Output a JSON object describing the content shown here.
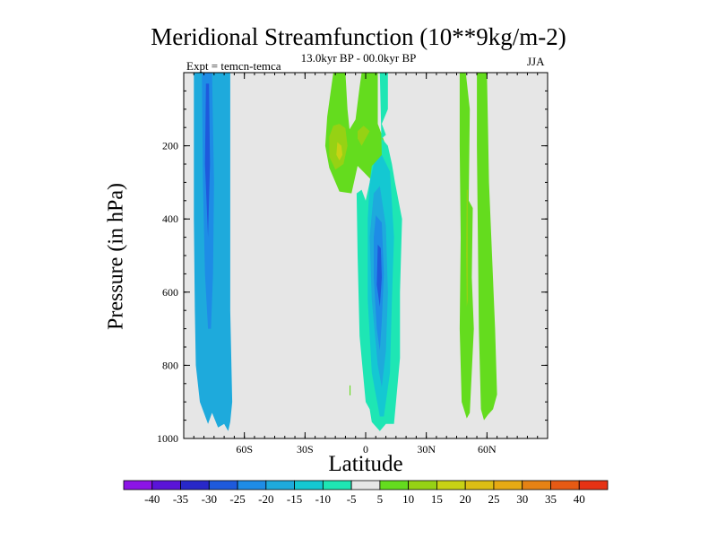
{
  "chart_data": {
    "type": "contour",
    "title": "Meridional Streamfunction (10**9kg/m-2)",
    "subtitle": "13.0kyr BP - 00.0kyr BP",
    "experiment_label": "Expt = temcn-temca",
    "season": "JJA",
    "xlabel": "Latitude",
    "ylabel": "Pressure (in hPa)",
    "xlim": [
      -90,
      90
    ],
    "ylim": [
      1000,
      0
    ],
    "x_ticks": [
      {
        "value": -60,
        "label": "60S"
      },
      {
        "value": -30,
        "label": "30S"
      },
      {
        "value": 0,
        "label": "0"
      },
      {
        "value": 30,
        "label": "30N"
      },
      {
        "value": 60,
        "label": "60N"
      }
    ],
    "y_ticks": [
      {
        "value": 200,
        "label": "200"
      },
      {
        "value": 400,
        "label": "400"
      },
      {
        "value": 600,
        "label": "600"
      },
      {
        "value": 800,
        "label": "800"
      },
      {
        "value": 1000,
        "label": "1000"
      }
    ],
    "background_color": "#e6e6e6",
    "contour_levels": [
      {
        "label": "-40",
        "color": "#8c14e6"
      },
      {
        "label": "-35",
        "color": "#5a14d8"
      },
      {
        "label": "-30",
        "color": "#2828c8"
      },
      {
        "label": "-25",
        "color": "#1e5adc"
      },
      {
        "label": "-20",
        "color": "#1e8ce6"
      },
      {
        "label": "-15",
        "color": "#1eaadc"
      },
      {
        "label": "-10",
        "color": "#14c8d2"
      },
      {
        "label": "-5",
        "color": "#1ee6b4"
      },
      {
        "label": "5",
        "color": "#e6e6e6"
      },
      {
        "label": "10",
        "color": "#64dc1e"
      },
      {
        "label": "15",
        "color": "#96d214"
      },
      {
        "label": "20",
        "color": "#c8d214"
      },
      {
        "label": "25",
        "color": "#dcbe14"
      },
      {
        "label": "30",
        "color": "#e6aa14"
      },
      {
        "label": "35",
        "color": "#e68214"
      },
      {
        "label": "40",
        "color": "#e65a14"
      },
      {
        "color": "#e63214"
      }
    ],
    "regions": [
      {
        "name": "sh-high-lat-negative-cell",
        "level_color": "#1eaadc",
        "points": [
          [
            -85,
            0
          ],
          [
            -67,
            0
          ],
          [
            -67,
            650
          ],
          [
            -66,
            900
          ],
          [
            -67,
            955
          ],
          [
            -68,
            980
          ],
          [
            -70,
            960
          ],
          [
            -73,
            970
          ],
          [
            -76,
            930
          ],
          [
            -78,
            960
          ],
          [
            -82,
            900
          ],
          [
            -84,
            800
          ],
          [
            -84.5,
            650
          ],
          [
            -85,
            400
          ]
        ]
      },
      {
        "name": "sh-high-lat-core-minus15",
        "level_color": "#1e8ce6",
        "points": [
          [
            -81,
            0
          ],
          [
            -76,
            0
          ],
          [
            -75,
            300
          ],
          [
            -75.5,
            550
          ],
          [
            -76.5,
            700
          ],
          [
            -78,
            700
          ],
          [
            -79.5,
            550
          ],
          [
            -80.5,
            300
          ]
        ]
      },
      {
        "name": "sh-high-lat-core-minus20",
        "level_color": "#1e5adc",
        "points": [
          [
            -79,
            30
          ],
          [
            -77.5,
            30
          ],
          [
            -77,
            250
          ],
          [
            -78,
            450
          ],
          [
            -79.5,
            250
          ]
        ]
      },
      {
        "name": "upper-trop-positive-patch",
        "level_color": "#64dc1e",
        "points": [
          [
            -16,
            0
          ],
          [
            -10,
            0
          ],
          [
            -9,
            100
          ],
          [
            -8,
            155
          ],
          [
            -5,
            128
          ],
          [
            -3,
            40
          ],
          [
            -2,
            0
          ],
          [
            6,
            0
          ],
          [
            6,
            140
          ],
          [
            10,
            200
          ],
          [
            9,
            235
          ],
          [
            5,
            248
          ],
          [
            4,
            300
          ],
          [
            -4,
            255
          ],
          [
            -7,
            330
          ],
          [
            -13,
            325
          ],
          [
            -18,
            260
          ],
          [
            -20,
            200
          ],
          [
            -19,
            120
          ]
        ]
      },
      {
        "name": "upper-trop-patch-15a",
        "level_color": "#96d214",
        "points": [
          [
            -16,
            145
          ],
          [
            -13,
            140
          ],
          [
            -10,
            152
          ],
          [
            -9,
            200
          ],
          [
            -11,
            250
          ],
          [
            -15,
            265
          ],
          [
            -18,
            230
          ],
          [
            -18,
            175
          ]
        ]
      },
      {
        "name": "upper-trop-patch-20",
        "level_color": "#c8d214",
        "points": [
          [
            -14,
            190
          ],
          [
            -12,
            200
          ],
          [
            -11.5,
            225
          ],
          [
            -13,
            240
          ],
          [
            -14.5,
            225
          ]
        ]
      },
      {
        "name": "upper-trop-patch-15b",
        "level_color": "#96d214",
        "points": [
          [
            -4,
            160
          ],
          [
            -1,
            145
          ],
          [
            2,
            160
          ],
          [
            0,
            180
          ],
          [
            -2,
            200
          ],
          [
            -4,
            180
          ]
        ]
      },
      {
        "name": "tropical-negative-cell",
        "level_color": "#1ee6b4",
        "points": [
          [
            7,
            0
          ],
          [
            11,
            0
          ],
          [
            11,
            100
          ],
          [
            8,
            140
          ],
          [
            10,
            170
          ],
          [
            8,
            180
          ],
          [
            11,
            200
          ],
          [
            13,
            250
          ],
          [
            14.5,
            300
          ],
          [
            18,
            400
          ],
          [
            17,
            600
          ],
          [
            17,
            780
          ],
          [
            14,
            960
          ],
          [
            10,
            960
          ],
          [
            7,
            980
          ],
          [
            3,
            955
          ],
          [
            2,
            920
          ],
          [
            0,
            900
          ],
          [
            -3,
            720
          ],
          [
            -4,
            500
          ],
          [
            -4.5,
            330
          ],
          [
            -2,
            320
          ],
          [
            0,
            350
          ],
          [
            2,
            300
          ],
          [
            3,
            255
          ],
          [
            8,
            230
          ]
        ]
      },
      {
        "name": "tropical-core-minus10",
        "level_color": "#14c8d2",
        "points": [
          [
            4,
            250
          ],
          [
            8,
            225
          ],
          [
            12,
            270
          ],
          [
            14,
            450
          ],
          [
            13,
            620
          ],
          [
            12,
            820
          ],
          [
            9,
            940
          ],
          [
            7,
            940
          ],
          [
            3,
            820
          ],
          [
            1,
            620
          ],
          [
            1,
            400
          ],
          [
            2,
            300
          ]
        ]
      },
      {
        "name": "tropical-core-minus15",
        "level_color": "#1eaadc",
        "points": [
          [
            4,
            330
          ],
          [
            7,
            310
          ],
          [
            10,
            420
          ],
          [
            11,
            600
          ],
          [
            10,
            760
          ],
          [
            8,
            860
          ],
          [
            6,
            800
          ],
          [
            3,
            620
          ],
          [
            2,
            450
          ]
        ]
      },
      {
        "name": "tropical-core-minus20",
        "level_color": "#1e8ce6",
        "points": [
          [
            5,
            390
          ],
          [
            8,
            410
          ],
          [
            9,
            550
          ],
          [
            8,
            680
          ],
          [
            7,
            760
          ],
          [
            5.5,
            700
          ],
          [
            4,
            560
          ],
          [
            4,
            450
          ]
        ]
      },
      {
        "name": "tropical-core-minus25",
        "level_color": "#1e5adc",
        "points": [
          [
            6,
            470
          ],
          [
            7.5,
            480
          ],
          [
            8,
            560
          ],
          [
            7,
            640
          ],
          [
            5.5,
            580
          ]
        ]
      },
      {
        "name": "nh-midlat-positive-band",
        "level_color": "#64dc1e",
        "points": [
          [
            46.5,
            0
          ],
          [
            49.5,
            0
          ],
          [
            51.5,
            100
          ],
          [
            51,
            350
          ],
          [
            53,
            370
          ],
          [
            52.5,
            560
          ],
          [
            53.5,
            700
          ],
          [
            51.5,
            930
          ],
          [
            50,
            945
          ],
          [
            47.5,
            900
          ],
          [
            46.5,
            700
          ],
          [
            47,
            450
          ],
          [
            46.5,
            200
          ]
        ]
      },
      {
        "name": "nh-midlat-thin-core",
        "level_color": "#96d214",
        "points": [
          [
            50,
            320
          ],
          [
            50.5,
            320
          ],
          [
            50.6,
            620
          ],
          [
            50,
            640
          ],
          [
            49.7,
            500
          ]
        ]
      },
      {
        "name": "nh-high-lat-positive-band",
        "level_color": "#64dc1e",
        "points": [
          [
            55,
            0
          ],
          [
            60,
            0
          ],
          [
            60.5,
            150
          ],
          [
            61,
            300
          ],
          [
            62.5,
            500
          ],
          [
            64,
            700
          ],
          [
            65,
            880
          ],
          [
            63,
            920
          ],
          [
            60.5,
            935
          ],
          [
            58.5,
            950
          ],
          [
            57,
            920
          ],
          [
            56,
            700
          ],
          [
            55.5,
            450
          ],
          [
            55,
            200
          ]
        ]
      },
      {
        "name": "small-speck",
        "level_color": "#64dc1e",
        "points": [
          [
            -8,
            855
          ],
          [
            -7.5,
            855
          ],
          [
            -7.5,
            882
          ],
          [
            -8,
            882
          ]
        ]
      }
    ]
  }
}
